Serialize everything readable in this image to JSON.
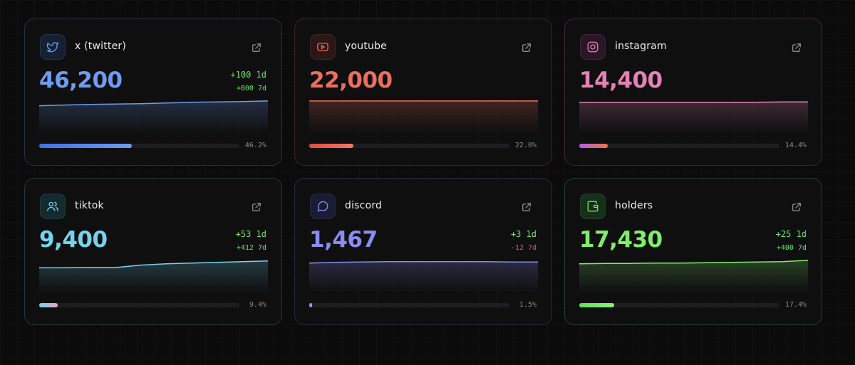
{
  "cards": [
    {
      "title": "x (twitter)",
      "icon": "twitter-icon",
      "value": "46,200",
      "delta_1d": "+100 1d",
      "delta_7d": "+800 7d",
      "pct_label": "46.2%",
      "progress": 0.462,
      "accent": "#6e9cf2",
      "border": "#243047",
      "icon_bg": "#152033",
      "bar": [
        "#3b73e8",
        "#6e9cf2"
      ],
      "trend": [
        0.2,
        0.18,
        0.16,
        0.15,
        0.14,
        0.12,
        0.1,
        0.09,
        0.08,
        0.06
      ]
    },
    {
      "title": "youtube",
      "icon": "youtube-icon",
      "value": "22,000",
      "delta_1d": "",
      "delta_7d": "",
      "pct_label": "22.0%",
      "progress": 0.22,
      "accent": "#ec6e5c",
      "border": "#3d2424",
      "icon_bg": "#2c1616",
      "bar": [
        "#e5493c",
        "#f07a66"
      ],
      "trend": [
        0.06,
        0.06,
        0.06,
        0.06,
        0.06,
        0.06,
        0.06,
        0.06,
        0.06,
        0.06
      ]
    },
    {
      "title": "instagram",
      "icon": "instagram-icon",
      "value": "14,400",
      "delta_1d": "",
      "delta_7d": "",
      "pct_label": "14.4%",
      "progress": 0.144,
      "accent": "#e482b4",
      "border": "#3d2436",
      "icon_bg": "#2a1626",
      "bar": [
        "#b05cf0",
        "#f0763d"
      ],
      "trend": [
        0.1,
        0.1,
        0.1,
        0.1,
        0.1,
        0.1,
        0.1,
        0.1,
        0.09,
        0.09
      ]
    },
    {
      "title": "tiktok",
      "icon": "users-icon",
      "value": "9,400",
      "delta_1d": "+53 1d",
      "delta_7d": "+412 7d",
      "pct_label": "9.4%",
      "progress": 0.094,
      "accent": "#74d4ee",
      "border": "#213a3f",
      "icon_bg": "#142a2e",
      "bar": [
        "#74d4ee",
        "#f2a0c8"
      ],
      "trend": [
        0.28,
        0.28,
        0.27,
        0.27,
        0.2,
        0.16,
        0.14,
        0.12,
        0.1,
        0.08
      ]
    },
    {
      "title": "discord",
      "icon": "chat-icon",
      "value": "1,467",
      "delta_1d": "+3 1d",
      "delta_7d": "-12 7d",
      "pct_label": "1.5%",
      "progress": 0.015,
      "accent": "#8a8cf0",
      "border": "#272a45",
      "icon_bg": "#1a1c33",
      "bar": [
        "#7a7ef0",
        "#9aa0f5"
      ],
      "trend": [
        0.14,
        0.12,
        0.11,
        0.1,
        0.1,
        0.1,
        0.1,
        0.1,
        0.11,
        0.11
      ]
    },
    {
      "title": "holders",
      "icon": "wallet-icon",
      "value": "17,430",
      "delta_1d": "+25 1d",
      "delta_7d": "+400 7d",
      "pct_label": "17.4%",
      "progress": 0.174,
      "accent": "#7fee6a",
      "border": "#24402a",
      "icon_bg": "#16301a",
      "bar": [
        "#5fe05a",
        "#8cf07a"
      ],
      "trend": [
        0.16,
        0.15,
        0.15,
        0.14,
        0.14,
        0.13,
        0.12,
        0.11,
        0.1,
        0.06
      ]
    }
  ]
}
